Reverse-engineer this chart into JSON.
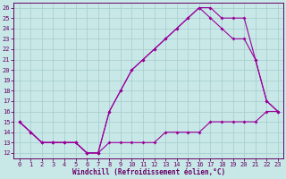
{
  "xlabel": "Windchill (Refroidissement éolien,°C)",
  "bg_color": "#c8e8e8",
  "line_color": "#990099",
  "grid_color": "#aacfcf",
  "xlim": [
    -0.5,
    23.5
  ],
  "ylim": [
    11.5,
    26.5
  ],
  "xticks": [
    0,
    1,
    2,
    3,
    4,
    5,
    6,
    7,
    8,
    9,
    10,
    11,
    12,
    13,
    14,
    15,
    16,
    17,
    18,
    19,
    20,
    21,
    22,
    23
  ],
  "yticks": [
    12,
    13,
    14,
    15,
    16,
    17,
    18,
    19,
    20,
    21,
    22,
    23,
    24,
    25,
    26
  ],
  "line1_x": [
    0,
    1,
    2,
    3,
    4,
    5,
    6,
    7,
    8,
    9,
    10,
    11,
    12,
    13,
    14,
    15,
    16,
    17,
    18,
    19,
    20,
    21,
    22,
    23
  ],
  "line1_y": [
    15,
    14,
    13,
    13,
    13,
    13,
    12,
    12,
    13,
    13,
    13,
    13,
    13,
    14,
    14,
    14,
    14,
    15,
    15,
    15,
    15,
    15,
    16,
    16
  ],
  "line2_x": [
    0,
    1,
    2,
    3,
    4,
    5,
    6,
    7,
    8,
    9,
    10,
    11,
    12,
    13,
    14,
    15,
    16,
    17,
    18,
    19,
    20,
    21,
    22,
    23
  ],
  "line2_y": [
    15,
    14,
    13,
    13,
    13,
    13,
    12,
    12,
    16,
    18,
    20,
    21,
    22,
    23,
    24,
    25,
    26,
    26,
    25,
    25,
    25,
    21,
    17,
    16
  ],
  "line3_x": [
    0,
    1,
    2,
    3,
    4,
    5,
    6,
    7,
    8,
    9,
    10,
    11,
    12,
    13,
    14,
    15,
    16,
    17,
    18,
    19,
    20,
    21,
    22,
    23
  ],
  "line3_y": [
    15,
    14,
    13,
    13,
    13,
    13,
    12,
    12,
    16,
    18,
    20,
    21,
    22,
    23,
    24,
    25,
    26,
    25,
    24,
    23,
    23,
    21,
    17,
    16
  ],
  "xlabel_fontsize": 5.5,
  "tick_fontsize": 5,
  "marker_size": 2.0
}
